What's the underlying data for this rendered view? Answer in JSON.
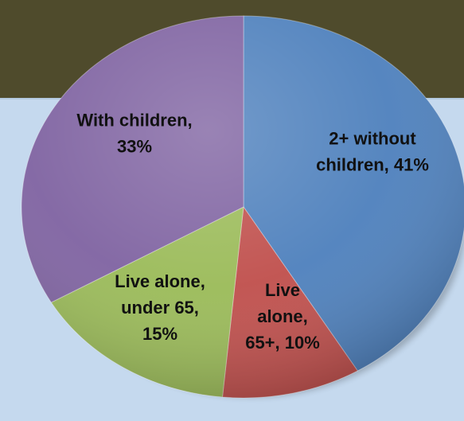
{
  "chart_data": {
    "type": "pie",
    "title": "",
    "slices": [
      {
        "label_lines": [
          "2+ without",
          "children, 41%"
        ],
        "category": "2+ without children",
        "value": 41,
        "color": "#4f81bd"
      },
      {
        "label_lines": [
          "Live",
          "alone,",
          "65+, 10%"
        ],
        "category": "Live alone, 65+",
        "value": 10,
        "color": "#c0504d"
      },
      {
        "label_lines": [
          "Live alone,",
          "under 65,",
          "15%"
        ],
        "category": "Live alone, under 65",
        "value": 15,
        "color": "#9bbb59"
      },
      {
        "label_lines": [
          "With children,",
          "33%"
        ],
        "category": "With children",
        "value": 33,
        "color": "#8064a2"
      }
    ],
    "legend": "none",
    "grid": false,
    "style": "3d-shaded pie, first slice starting at 12 o'clock, clockwise"
  },
  "colors": {
    "top_band": "#4f4b2c",
    "panel_background": "#c5d9ee"
  }
}
